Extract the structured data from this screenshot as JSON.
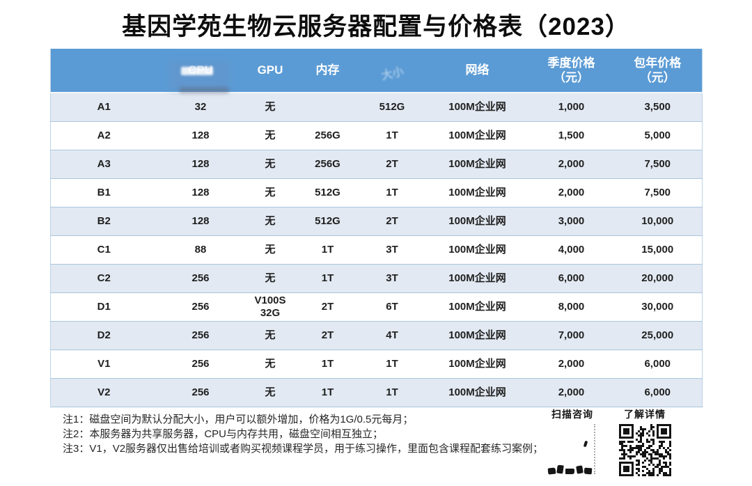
{
  "title": "基因学苑生物云服务器配置与价格表（2023）",
  "table": {
    "columns": [
      {
        "key": "server",
        "label": ""
      },
      {
        "key": "cpu",
        "label": "CPU"
      },
      {
        "key": "gpu",
        "label": "GPU"
      },
      {
        "key": "memory",
        "label": "内存"
      },
      {
        "key": "disk-size",
        "label": "大小",
        "ghost": true
      },
      {
        "key": "network",
        "label": "网络"
      },
      {
        "key": "quarterly-price",
        "label": "季度价格\n（元）"
      },
      {
        "key": "yearly-price",
        "label": "包年价格\n（元）"
      }
    ],
    "rows": [
      {
        "id": "A1",
        "cells": [
          "A1",
          "32",
          "无",
          "",
          "512G",
          "100M企业网",
          "1,000",
          "3,500"
        ]
      },
      {
        "id": "A2",
        "cells": [
          "A2",
          "128",
          "无",
          "256G",
          "1T",
          "100M企业网",
          "1,500",
          "5,000"
        ]
      },
      {
        "id": "A3",
        "cells": [
          "A3",
          "128",
          "无",
          "256G",
          "2T",
          "100M企业网",
          "2,000",
          "7,500"
        ]
      },
      {
        "id": "B1",
        "cells": [
          "B1",
          "128",
          "无",
          "512G",
          "1T",
          "100M企业网",
          "2,000",
          "7,500"
        ]
      },
      {
        "id": "B2",
        "cells": [
          "B2",
          "128",
          "无",
          "512G",
          "2T",
          "100M企业网",
          "3,000",
          "10,000"
        ]
      },
      {
        "id": "C1",
        "cells": [
          "C1",
          "88",
          "无",
          "1T",
          "3T",
          "100M企业网",
          "4,000",
          "15,000"
        ]
      },
      {
        "id": "C2",
        "cells": [
          "C2",
          "256",
          "无",
          "1T",
          "3T",
          "100M企业网",
          "6,000",
          "20,000"
        ]
      },
      {
        "id": "D1",
        "cells": [
          "D1",
          "256",
          "V100S\n32G",
          "2T",
          "6T",
          "100M企业网",
          "8,000",
          "30,000"
        ]
      },
      {
        "id": "D2",
        "cells": [
          "D2",
          "256",
          "无",
          "2T",
          "4T",
          "100M企业网",
          "7,000",
          "25,000"
        ]
      },
      {
        "id": "V1",
        "cells": [
          "V1",
          "256",
          "无",
          "1T",
          "1T",
          "100M企业网",
          "2,000",
          "6,000"
        ]
      },
      {
        "id": "V2",
        "cells": [
          "V2",
          "256",
          "无",
          "1T",
          "1T",
          "100M企业网",
          "2,000",
          "6,000"
        ]
      }
    ]
  },
  "notes": [
    "注1：磁盘空间为默认分配大小，用户可以额外增加，价格为1G/0.5元每月；",
    "注2：本服务器为共享服务器，CPU与内存共用，磁盘空间相互独立；",
    "注3：V1，V2服务器仅出售给培训或者购买视频课程学员，用于练习操作，里面包含课程配套练习案例；"
  ],
  "qr": {
    "left_label": "扫描咨询",
    "right_label": "了解详情"
  },
  "colors": {
    "header_bg": "#5B9BD5",
    "header_text": "#FFFFFF",
    "stripe_bg": "#E2E9F2",
    "row_border": "#AAC6DE",
    "table_border": "#BCD2E8",
    "cell_text": "#1F1F1F"
  }
}
